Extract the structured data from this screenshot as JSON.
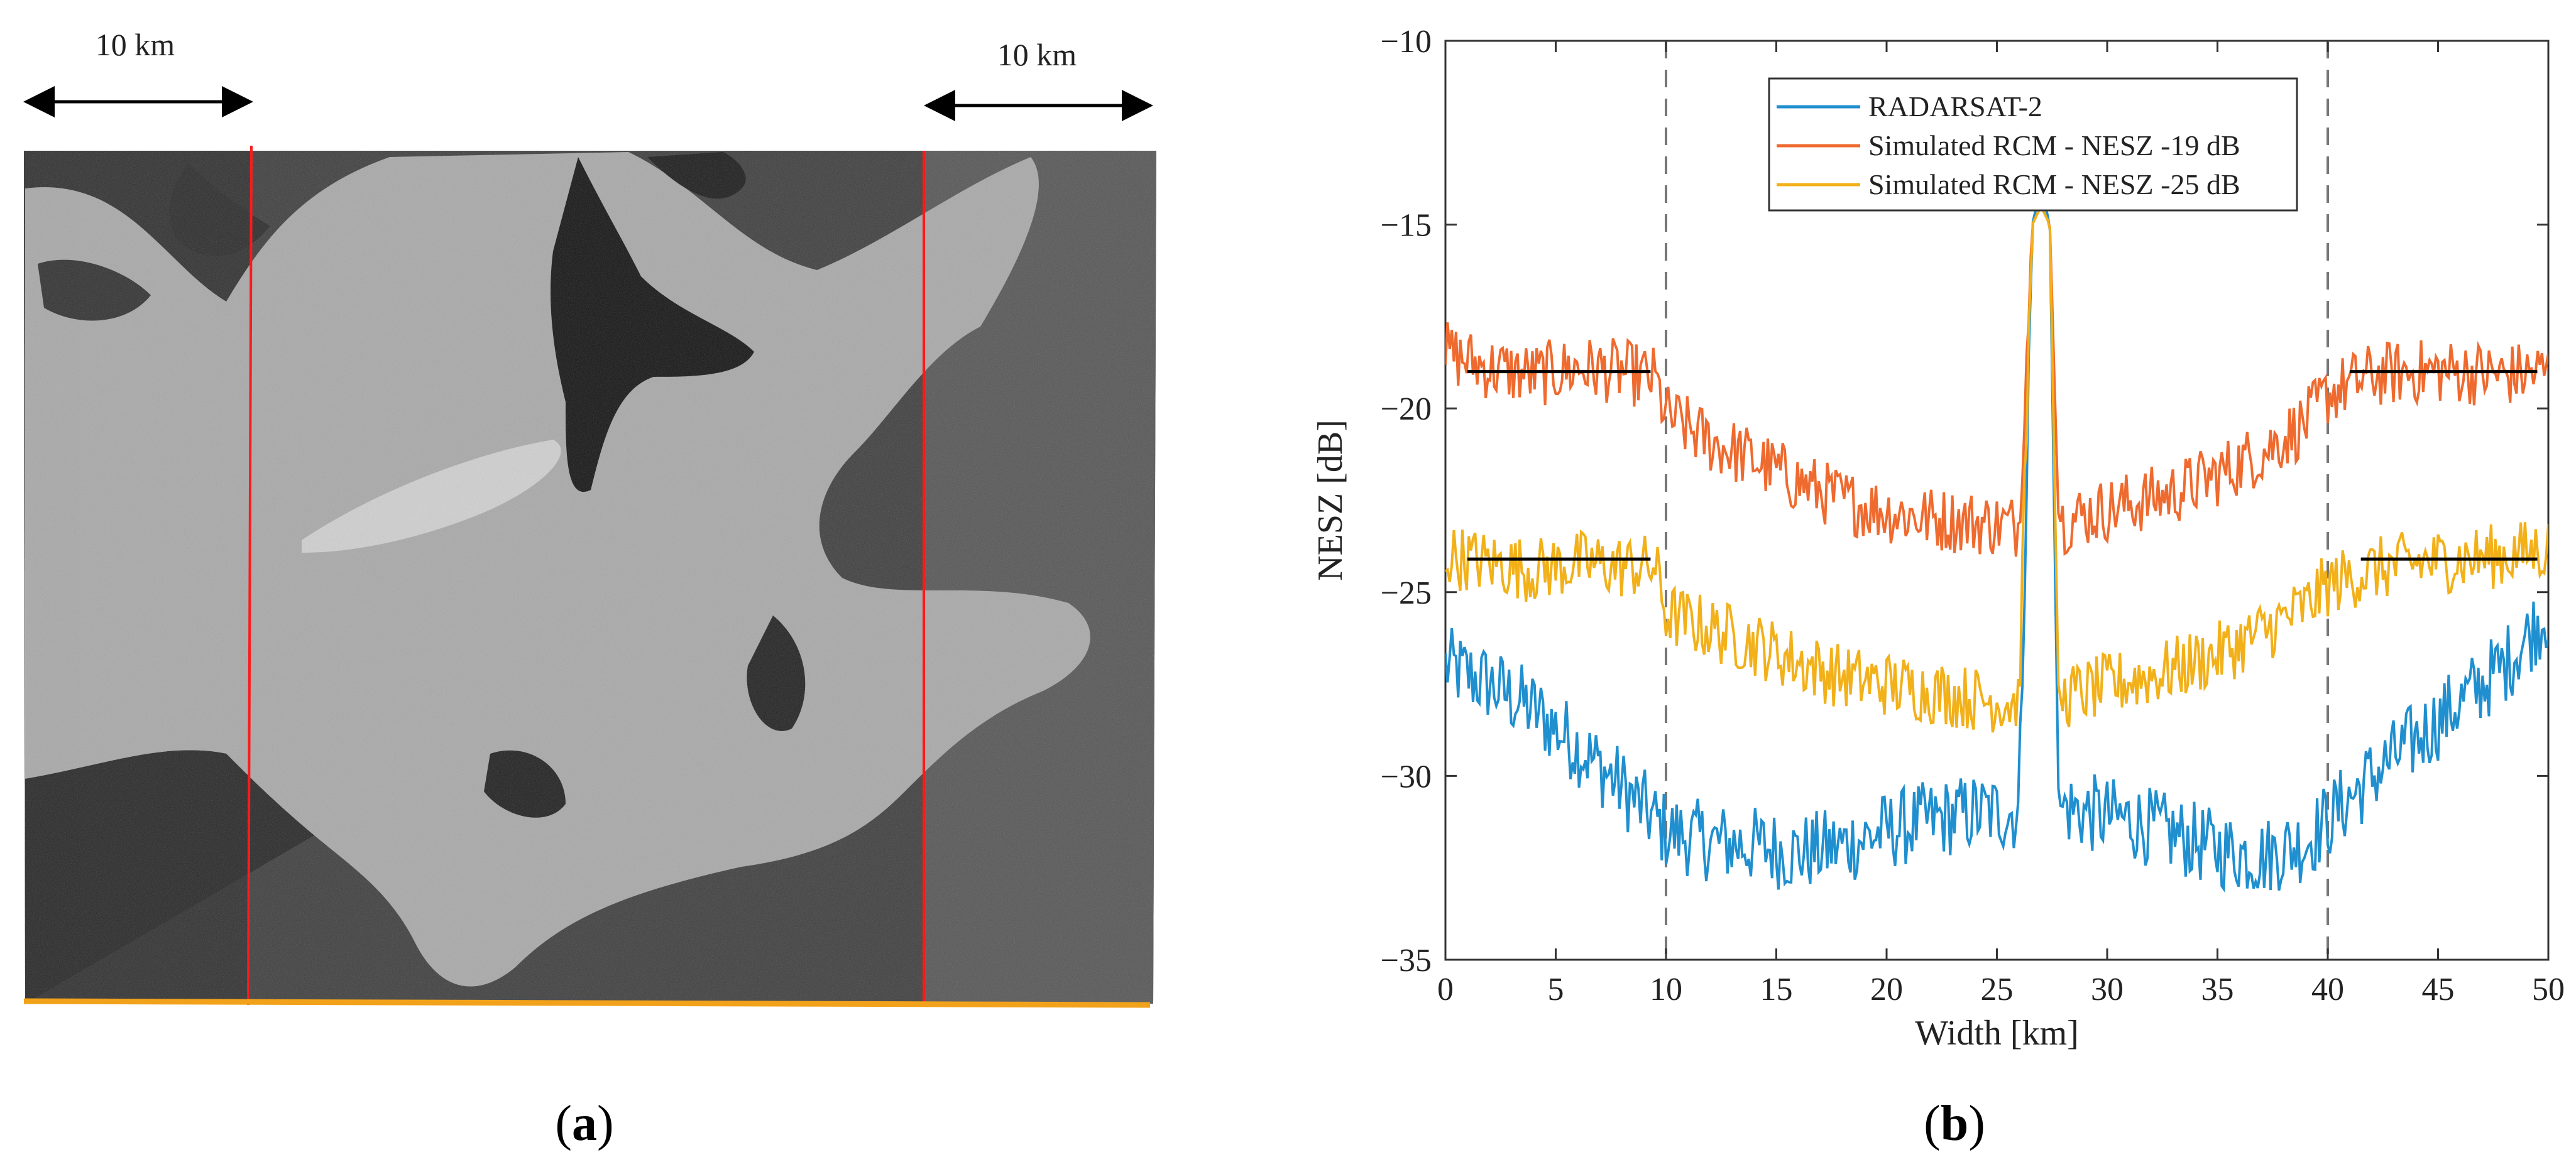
{
  "panel_a": {
    "label": "(a)",
    "label_letter": "a",
    "scale_left": "10 km",
    "scale_right": "10 km"
  },
  "panel_b": {
    "label": "(b)",
    "label_letter": "b"
  },
  "chart_data": {
    "type": "line",
    "title": "",
    "xlabel": "Width [km]",
    "ylabel": "NESZ [dB]",
    "xlim": [
      0,
      50
    ],
    "ylim": [
      -35,
      -10
    ],
    "xticks": [
      0,
      5,
      10,
      15,
      20,
      25,
      30,
      35,
      40,
      45,
      50
    ],
    "yticks": [
      -35,
      -30,
      -25,
      -20,
      -15,
      -10
    ],
    "grid": false,
    "legend_position": "top-center",
    "vertical_dashed_lines_x": [
      10,
      40
    ],
    "series": [
      {
        "name": "RADARSAT-2",
        "color": "#1f8fcf",
        "x": [
          0,
          2,
          4,
          6,
          8,
          10,
          12,
          14,
          16,
          18,
          20,
          22,
          24,
          26,
          26.6,
          27,
          27.4,
          27.8,
          29,
          31,
          33,
          35,
          37,
          39,
          40,
          42,
          44,
          46,
          48,
          50
        ],
        "y": [
          -27,
          -27.5,
          -28.2,
          -29.2,
          -30.3,
          -31.5,
          -31.8,
          -31.9,
          -32.1,
          -31.9,
          -31.5,
          -31.2,
          -31.0,
          -31.0,
          -15,
          -14,
          -15,
          -30.8,
          -31.0,
          -31.2,
          -31.6,
          -32.0,
          -32.2,
          -31.8,
          -31.2,
          -30.0,
          -29.0,
          -28.0,
          -27.0,
          -25.5
        ]
      },
      {
        "name": "Simulated RCM - NESZ -19 dB",
        "color": "#ef6a2e",
        "x": [
          0,
          2,
          4,
          6,
          8,
          9.5,
          10,
          12,
          14,
          16,
          18,
          20,
          22,
          24,
          26,
          26.6,
          27,
          27.4,
          27.8,
          29,
          31,
          33,
          35,
          37,
          39,
          40,
          42,
          44,
          46,
          48,
          50
        ],
        "y": [
          -18.5,
          -18.9,
          -19.1,
          -18.9,
          -19.0,
          -19.2,
          -20.2,
          -20.9,
          -21.4,
          -22.0,
          -22.5,
          -22.8,
          -23.0,
          -23.1,
          -23.2,
          -15,
          -14.5,
          -15,
          -23.1,
          -22.9,
          -22.6,
          -22.3,
          -21.8,
          -21.2,
          -20.4,
          -19.6,
          -19.1,
          -19.0,
          -19.0,
          -19.1,
          -19.0
        ]
      },
      {
        "name": "Simulated RCM - NESZ -25 dB",
        "color": "#f2b019",
        "x": [
          0,
          2,
          4,
          6,
          8,
          9.5,
          10,
          12,
          14,
          16,
          18,
          20,
          22,
          24,
          26,
          26.6,
          27,
          27.4,
          27.8,
          29,
          31,
          33,
          35,
          37,
          39,
          40,
          42,
          44,
          46,
          48,
          50
        ],
        "y": [
          -24.0,
          -24.2,
          -24.4,
          -24.2,
          -24.3,
          -24.3,
          -25.6,
          -26.0,
          -26.4,
          -26.9,
          -27.3,
          -27.5,
          -27.7,
          -27.9,
          -28.0,
          -15,
          -14.5,
          -15,
          -27.9,
          -27.7,
          -27.4,
          -27.1,
          -26.7,
          -26.1,
          -25.4,
          -24.8,
          -24.4,
          -24.2,
          -24.1,
          -24.0,
          -23.8
        ]
      }
    ],
    "reference_segments": [
      {
        "x": [
          1,
          9.3
        ],
        "y": -19.0,
        "color": "#000000"
      },
      {
        "x": [
          41,
          49.5
        ],
        "y": -19.0,
        "color": "#000000"
      },
      {
        "x": [
          1,
          9.3
        ],
        "y": -24.1,
        "color": "#000000"
      },
      {
        "x": [
          41.5,
          49.5
        ],
        "y": -24.1,
        "color": "#000000"
      }
    ]
  }
}
